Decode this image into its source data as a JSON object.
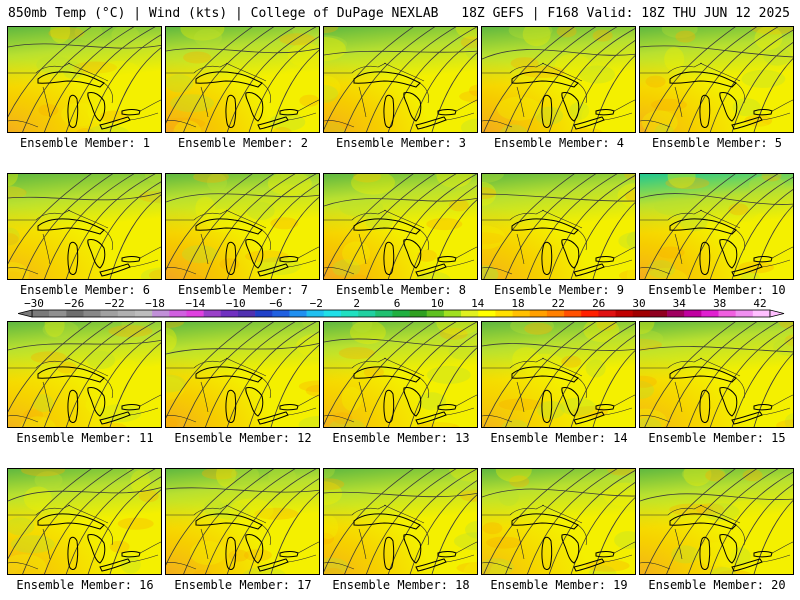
{
  "header": {
    "left": "850mb Temp (°C) | Wind (kts) | College of DuPage NEXLAB",
    "right": "18Z GEFS | F168 Valid: 18Z THU JUN 12 2025"
  },
  "member_prefix": "Ensemble Member:",
  "members": [
    {
      "number": "1",
      "warm": 0.45,
      "cool_ne": 0.55,
      "green_n": 0.55
    },
    {
      "number": "2",
      "warm": 0.55,
      "cool_ne": 0.2,
      "green_n": 0.4
    },
    {
      "number": "3",
      "warm": 0.5,
      "cool_ne": 0.7,
      "green_n": 0.55
    },
    {
      "number": "4",
      "warm": 0.55,
      "cool_ne": 0.55,
      "green_n": 0.55
    },
    {
      "number": "5",
      "warm": 0.4,
      "cool_ne": 0.3,
      "green_n": 0.45
    },
    {
      "number": "6",
      "warm": 0.3,
      "cool_ne": 0.55,
      "green_n": 0.6
    },
    {
      "number": "7",
      "warm": 0.65,
      "cool_ne": 0.15,
      "green_n": 0.3
    },
    {
      "number": "8",
      "warm": 0.6,
      "cool_ne": 0.25,
      "green_n": 0.35
    },
    {
      "number": "9",
      "warm": 0.45,
      "cool_ne": 0.15,
      "green_n": 0.35
    },
    {
      "number": "10",
      "warm": 0.5,
      "cool_ne": 0.7,
      "green_n": 0.7
    },
    {
      "number": "11",
      "warm": 0.3,
      "cool_ne": 0.3,
      "green_n": 0.45
    },
    {
      "number": "12",
      "warm": 0.5,
      "cool_ne": 0.35,
      "green_n": 0.45
    },
    {
      "number": "13",
      "warm": 0.35,
      "cool_ne": 0.25,
      "green_n": 0.4
    },
    {
      "number": "14",
      "warm": 0.25,
      "cool_ne": 0.4,
      "green_n": 0.55
    },
    {
      "number": "15",
      "warm": 0.3,
      "cool_ne": 0.1,
      "green_n": 0.25
    },
    {
      "number": "16",
      "warm": 0.3,
      "cool_ne": 0.25,
      "green_n": 0.4
    },
    {
      "number": "17",
      "warm": 0.45,
      "cool_ne": 0.2,
      "green_n": 0.35
    },
    {
      "number": "18",
      "warm": 0.4,
      "cool_ne": 0.3,
      "green_n": 0.45
    },
    {
      "number": "19",
      "warm": 0.2,
      "cool_ne": 0.1,
      "green_n": 0.3
    },
    {
      "number": "20",
      "warm": 0.35,
      "cool_ne": 0.3,
      "green_n": 0.4
    }
  ],
  "colorbar": {
    "labels": [
      "−30",
      "−26",
      "−22",
      "−18",
      "−14",
      "−10",
      "−6",
      "−2",
      "2",
      "6",
      "10",
      "14",
      "18",
      "22",
      "26",
      "30",
      "34",
      "38",
      "42"
    ],
    "colors": [
      "#7a7a7a",
      "#909090",
      "#6e6e6e",
      "#888888",
      "#a0a0a0",
      "#b0b0b0",
      "#bcbcbc",
      "#c090d8",
      "#d060e0",
      "#e040e0",
      "#9a40c8",
      "#7030c0",
      "#5030b0",
      "#2040c8",
      "#2060e0",
      "#2090f0",
      "#20c0f0",
      "#20e0e8",
      "#20e0c0",
      "#20d0a0",
      "#20c070",
      "#20b040",
      "#30a020",
      "#60c020",
      "#a0e020",
      "#e0f020",
      "#ffff00",
      "#ffe000",
      "#ffc000",
      "#ffa000",
      "#ff8000",
      "#ff5000",
      "#ff2000",
      "#e01010",
      "#c00000",
      "#a00000",
      "#900020",
      "#a00060",
      "#c000a0",
      "#e020d0",
      "#f060e0",
      "#f090f0",
      "#ffc0ff"
    ]
  },
  "legend_colors": {
    "cool": "#20c890",
    "green": "#60b840",
    "lime": "#b8e030",
    "yellow": "#f4f000",
    "orange": "#f8b000",
    "warm": "#f08838"
  }
}
